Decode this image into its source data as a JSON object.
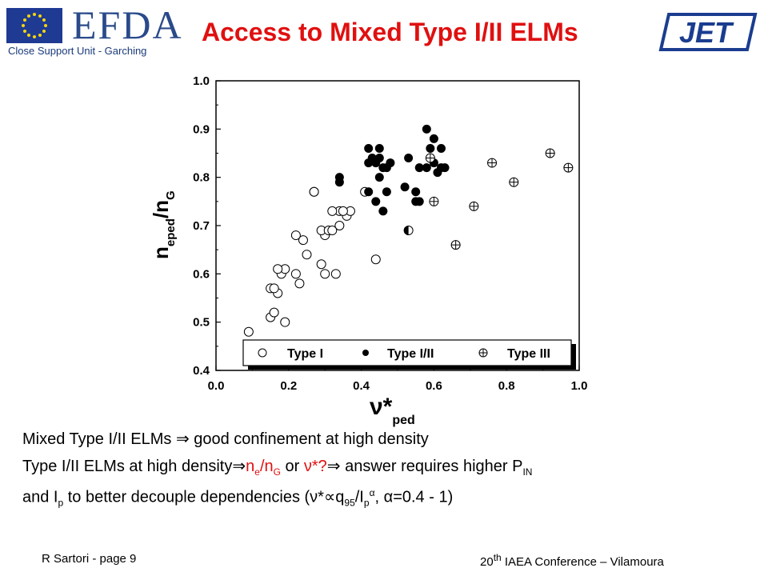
{
  "header": {
    "logo_text": "EFDA",
    "logo_subtitle": "Close Support Unit - Garching",
    "title": "Access to Mixed Type I/II ELMs",
    "right_logo_text": "JET"
  },
  "chart_data": {
    "type": "scatter",
    "title": "",
    "xlabel_main": "ν*",
    "xlabel_sub": "ped",
    "ylabel_main": "n",
    "ylabel_sub": "eped",
    "ylabel_tail": "/n",
    "ylabel_tail_sub": "G",
    "xlim": [
      0.0,
      1.0
    ],
    "ylim": [
      0.4,
      1.0
    ],
    "x_ticks": [
      "0.0",
      "0.2",
      "0.4",
      "0.6",
      "0.8",
      "1.0"
    ],
    "y_ticks": [
      "0.4",
      "0.5",
      "0.6",
      "0.7",
      "0.8",
      "0.9",
      "1.0"
    ],
    "legend_position": "bottom",
    "series": [
      {
        "name": "Type I",
        "marker": "open-circle",
        "x": [
          0.09,
          0.15,
          0.16,
          0.15,
          0.17,
          0.16,
          0.18,
          0.19,
          0.19,
          0.17,
          0.22,
          0.24,
          0.22,
          0.23,
          0.25,
          0.27,
          0.29,
          0.3,
          0.3,
          0.29,
          0.33,
          0.34,
          0.31,
          0.32,
          0.34,
          0.32,
          0.36,
          0.37,
          0.35,
          0.27,
          0.44,
          0.41
        ],
        "y": [
          0.48,
          0.51,
          0.52,
          0.57,
          0.56,
          0.57,
          0.6,
          0.5,
          0.61,
          0.61,
          0.6,
          0.67,
          0.68,
          0.58,
          0.64,
          0.77,
          0.62,
          0.6,
          0.68,
          0.69,
          0.6,
          0.7,
          0.69,
          0.69,
          0.73,
          0.73,
          0.72,
          0.73,
          0.73,
          0.77,
          0.63,
          0.77
        ]
      },
      {
        "name": "Type I/II",
        "marker": "filled-circle",
        "x": [
          0.34,
          0.34,
          0.42,
          0.43,
          0.42,
          0.45,
          0.45,
          0.44,
          0.45,
          0.46,
          0.47,
          0.48,
          0.47,
          0.46,
          0.44,
          0.42,
          0.53,
          0.52,
          0.55,
          0.56,
          0.55,
          0.58,
          0.59,
          0.58,
          0.6,
          0.61,
          0.62,
          0.6,
          0.62,
          0.63,
          0.56
        ],
        "y": [
          0.79,
          0.8,
          0.86,
          0.84,
          0.83,
          0.86,
          0.84,
          0.83,
          0.8,
          0.82,
          0.82,
          0.83,
          0.77,
          0.73,
          0.75,
          0.77,
          0.84,
          0.78,
          0.77,
          0.82,
          0.75,
          0.9,
          0.86,
          0.82,
          0.88,
          0.81,
          0.86,
          0.83,
          0.82,
          0.82,
          0.75
        ]
      },
      {
        "name": "Type III",
        "marker": "circle-plus",
        "x": [
          0.59,
          0.6,
          0.66,
          0.71,
          0.76,
          0.82,
          0.92,
          0.97
        ],
        "y": [
          0.84,
          0.75,
          0.66,
          0.74,
          0.83,
          0.79,
          0.85,
          0.82
        ]
      }
    ],
    "special_points": [
      {
        "x": 0.53,
        "y": 0.69,
        "marker": "half-filled-circle"
      }
    ]
  },
  "bullets": {
    "line1_a": "Mixed Type I/II ELMs ",
    "line1_arrow": "⇒",
    "line1_b": " good confinement at high density",
    "line2_a": "Type I/II ELMs at high density",
    "line2_arrow1": "⇒",
    "line2_ne": "n",
    "line2_ne_sub": "e",
    "line2_slash": "/n",
    "line2_ng_sub": "G",
    "line2_or": " or ",
    "line2_nu": "ν*?",
    "line2_arrow2": "⇒",
    "line2_b": " answer requires  higher P",
    "line2_pin_sub": "IN",
    "line3_a": "and I",
    "line3_p_sub": "p",
    "line3_b": " to better decouple dependencies (",
    "line3_nu": "ν*",
    "line3_prop": "∝",
    "line3_q": "q",
    "line3_q_sub": "95",
    "line3_ip": "/I",
    "line3_ip_sub": "p",
    "line3_alpha_sup": "α",
    "line3_c": ", ",
    "line3_alpha": "α",
    "line3_d": "=0.4 - 1)"
  },
  "footer": {
    "left": "R Sartori  - page 9",
    "right_pre": "20",
    "right_sup": "th",
    "right_post": " IAEA Conference – Vilamoura"
  },
  "colors": {
    "title": "#e01010",
    "efda_blue": "#2a4a8a",
    "eu_flag": "#1f3a93",
    "jet_blue": "#1a3d8f"
  }
}
